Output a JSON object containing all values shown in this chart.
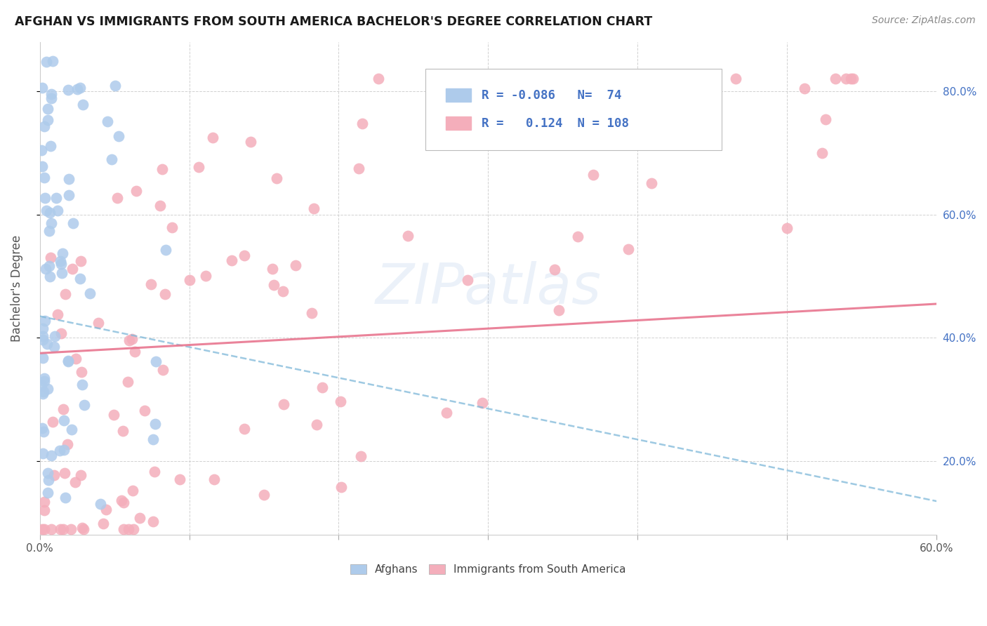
{
  "title": "AFGHAN VS IMMIGRANTS FROM SOUTH AMERICA BACHELOR'S DEGREE CORRELATION CHART",
  "source": "Source: ZipAtlas.com",
  "ylabel": "Bachelor's Degree",
  "xlim": [
    0.0,
    0.6
  ],
  "ylim": [
    0.08,
    0.88
  ],
  "legend_r_afghan": "-0.086",
  "legend_n_afghan": "74",
  "legend_r_south": "0.124",
  "legend_n_south": "108",
  "color_afghan": "#AECBEB",
  "color_south": "#F4AEBB",
  "color_afghan_line": "#7EB8D9",
  "color_south_line": "#E8768F",
  "legend_text_color": "#4472C4",
  "watermark": "ZIPatlas",
  "afg_line_start_y": 0.435,
  "afg_line_end_y": 0.135,
  "south_line_start_y": 0.375,
  "south_line_end_y": 0.455,
  "xticks": [
    0.0,
    0.1,
    0.2,
    0.3,
    0.4,
    0.5,
    0.6
  ],
  "yticks": [
    0.2,
    0.4,
    0.6,
    0.8
  ],
  "ytick_labels": [
    "20.0%",
    "40.0%",
    "60.0%",
    "80.0%"
  ]
}
